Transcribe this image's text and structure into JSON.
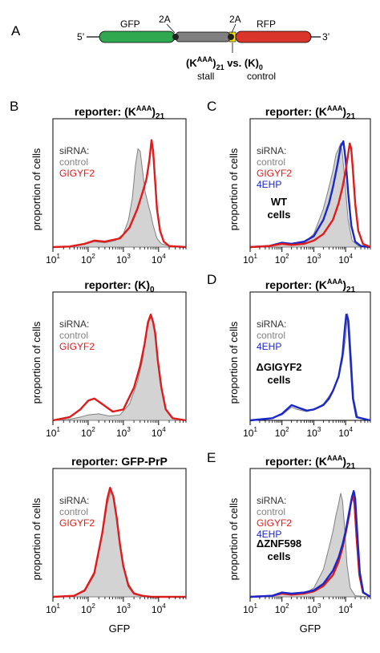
{
  "panels": {
    "a": "A",
    "b": "B",
    "c": "C",
    "d": "D",
    "e": "E"
  },
  "construct": {
    "five_prime": "5’",
    "three_prime": "3’",
    "gfp": "GFP",
    "rfp": "RFP",
    "two_a_left": "2A",
    "two_a_right": "2A",
    "insert_main": "(K",
    "insert_sup1": "AAA",
    "insert_sub1": "21",
    "insert_mid": " vs. (K)",
    "insert_sub2": "0",
    "stall": "stall",
    "control": "control",
    "colors": {
      "gfp": "#2fa84f",
      "linker": "#808080",
      "rfp": "#d9352b",
      "insert": "#f2e600",
      "node": "#222222"
    }
  },
  "colors": {
    "control_fill": "#d3d3d3",
    "control_line": "#808080",
    "gigyf2": "#e01b1b",
    "fourehp": "#1a27c9"
  },
  "chart_data": [
    {
      "id": "B1",
      "type": "area",
      "title": {
        "main": "reporter: (K",
        "sup": "AAA",
        "close": ")",
        "sub": "21"
      },
      "ylabel": "proportion of cells",
      "xlabel": "",
      "xscale": "log",
      "xlim": [
        10,
        60000
      ],
      "ylim": [
        0,
        1
      ],
      "xticks": [
        10,
        100,
        1000,
        10000
      ],
      "xtick_labels": [
        {
          "base": "10",
          "exp": "1"
        },
        {
          "base": "10",
          "exp": "2"
        },
        {
          "base": "10",
          "exp": "3"
        },
        {
          "base": "10",
          "exp": "4"
        }
      ],
      "legend": {
        "header": "siRNA:",
        "entries": [
          "control",
          "GIGYF2"
        ]
      },
      "note": "",
      "series": [
        {
          "name": "control",
          "style": "fill",
          "x": [
            10,
            30,
            80,
            150,
            300,
            600,
            1000,
            1400,
            1800,
            2200,
            2600,
            3000,
            3500,
            4200,
            5000,
            6000,
            7000,
            9000,
            12000,
            20000,
            60000
          ],
          "y": [
            0,
            0.005,
            0.025,
            0.05,
            0.04,
            0.06,
            0.12,
            0.25,
            0.45,
            0.75,
            0.9,
            0.88,
            0.7,
            0.5,
            0.4,
            0.3,
            0.2,
            0.08,
            0.03,
            0.01,
            0
          ]
        },
        {
          "name": "GIGYF2",
          "style": "line",
          "x": [
            10,
            30,
            80,
            150,
            300,
            800,
            1500,
            2500,
            3500,
            4500,
            5500,
            6300,
            7000,
            8000,
            9000,
            11000,
            14000,
            20000,
            60000
          ],
          "y": [
            0,
            0.005,
            0.03,
            0.06,
            0.05,
            0.08,
            0.18,
            0.35,
            0.5,
            0.62,
            0.8,
            0.98,
            0.88,
            0.6,
            0.35,
            0.15,
            0.05,
            0.01,
            0
          ]
        }
      ]
    },
    {
      "id": "C",
      "type": "area",
      "title": {
        "main": "reporter: (K",
        "sup": "AAA",
        "close": ")",
        "sub": "21"
      },
      "ylabel": "proportion of cells",
      "xlabel": "",
      "xscale": "log",
      "xlim": [
        10,
        60000
      ],
      "ylim": [
        0,
        1
      ],
      "xticks": [
        10,
        100,
        1000,
        10000
      ],
      "xtick_labels": [
        {
          "base": "10",
          "exp": "1"
        },
        {
          "base": "10",
          "exp": "2"
        },
        {
          "base": "10",
          "exp": "3"
        },
        {
          "base": "10",
          "exp": "4"
        }
      ],
      "legend": {
        "header": "siRNA:",
        "entries": [
          "control",
          "GIGYF2",
          "4EHP"
        ]
      },
      "note": "WT cells",
      "series": [
        {
          "name": "control",
          "style": "fill",
          "x": [
            10,
            40,
            100,
            200,
            500,
            1000,
            2000,
            3000,
            4000,
            5000,
            6000,
            7000,
            8000,
            9500,
            12000,
            16000,
            25000,
            60000
          ],
          "y": [
            0,
            0.01,
            0.03,
            0.02,
            0.04,
            0.12,
            0.35,
            0.55,
            0.7,
            0.85,
            0.9,
            0.95,
            0.85,
            0.6,
            0.25,
            0.06,
            0.01,
            0
          ]
        },
        {
          "name": "4EHP",
          "style": "line",
          "x": [
            10,
            40,
            100,
            200,
            500,
            1000,
            2000,
            3000,
            4000,
            5500,
            7000,
            8500,
            10000,
            12000,
            15000,
            20000,
            30000,
            60000
          ],
          "y": [
            0,
            0.01,
            0.04,
            0.03,
            0.05,
            0.1,
            0.25,
            0.4,
            0.55,
            0.75,
            0.92,
            0.97,
            0.8,
            0.5,
            0.2,
            0.05,
            0.01,
            0
          ]
        },
        {
          "name": "GIGYF2",
          "style": "line",
          "x": [
            10,
            40,
            100,
            200,
            500,
            1000,
            2000,
            4000,
            6000,
            8000,
            10000,
            12000,
            13500,
            15000,
            17000,
            20000,
            25000,
            35000,
            60000
          ],
          "y": [
            0,
            0.01,
            0.03,
            0.02,
            0.03,
            0.06,
            0.12,
            0.25,
            0.4,
            0.55,
            0.7,
            0.85,
            0.95,
            0.9,
            0.7,
            0.4,
            0.15,
            0.03,
            0
          ]
        }
      ]
    },
    {
      "id": "B2",
      "type": "area",
      "title": {
        "main": "reporter: (K)",
        "sup": "",
        "close": "",
        "sub": "0"
      },
      "ylabel": "proportion of cells",
      "xlabel": "",
      "xscale": "log",
      "xlim": [
        10,
        60000
      ],
      "ylim": [
        0,
        1
      ],
      "xticks": [
        10,
        100,
        1000,
        10000
      ],
      "xtick_labels": [
        {
          "base": "10",
          "exp": "1"
        },
        {
          "base": "10",
          "exp": "2"
        },
        {
          "base": "10",
          "exp": "3"
        },
        {
          "base": "10",
          "exp": "4"
        }
      ],
      "legend": {
        "header": "siRNA:",
        "entries": [
          "control",
          "GIGYF2"
        ]
      },
      "note": "",
      "series": [
        {
          "name": "control",
          "style": "fill",
          "x": [
            10,
            30,
            60,
            100,
            200,
            400,
            800,
            1500,
            2500,
            3500,
            4500,
            5500,
            6500,
            7500,
            9000,
            11000,
            15000,
            25000,
            60000
          ],
          "y": [
            0,
            0.01,
            0.03,
            0.05,
            0.06,
            0.04,
            0.05,
            0.15,
            0.35,
            0.55,
            0.8,
            0.92,
            0.95,
            0.85,
            0.6,
            0.35,
            0.12,
            0.02,
            0
          ]
        },
        {
          "name": "GIGYF2",
          "style": "line",
          "x": [
            10,
            30,
            60,
            100,
            150,
            250,
            500,
            1000,
            2000,
            3000,
            4000,
            5000,
            6000,
            7000,
            8000,
            9500,
            12000,
            16000,
            25000,
            60000
          ],
          "y": [
            0,
            0.03,
            0.1,
            0.18,
            0.2,
            0.15,
            0.08,
            0.1,
            0.3,
            0.5,
            0.7,
            0.9,
            0.97,
            0.9,
            0.8,
            0.55,
            0.3,
            0.1,
            0.02,
            0
          ]
        }
      ]
    },
    {
      "id": "D",
      "type": "area",
      "title": {
        "main": "reporter: (K",
        "sup": "AAA",
        "close": ")",
        "sub": "21"
      },
      "ylabel": "proportion of cells",
      "xlabel": "",
      "xscale": "log",
      "xlim": [
        10,
        60000
      ],
      "ylim": [
        0,
        1
      ],
      "xticks": [
        10,
        100,
        1000,
        10000
      ],
      "xtick_labels": [
        {
          "base": "10",
          "exp": "1"
        },
        {
          "base": "10",
          "exp": "2"
        },
        {
          "base": "10",
          "exp": "3"
        },
        {
          "base": "10",
          "exp": "4"
        }
      ],
      "legend": {
        "header": "siRNA:",
        "entries": [
          "control",
          "4EHP"
        ]
      },
      "note": "ΔGIGYF2 cells",
      "series": [
        {
          "name": "control",
          "style": "none",
          "x": [
            10,
            50,
            100,
            200,
            300,
            600,
            1000,
            2000,
            3000,
            4000,
            6000,
            8000,
            10000,
            11500,
            13000,
            15000,
            18000,
            24000,
            60000
          ],
          "y": [
            0,
            0.02,
            0.05,
            0.12,
            0.1,
            0.08,
            0.1,
            0.15,
            0.22,
            0.28,
            0.4,
            0.55,
            0.75,
            0.98,
            0.9,
            0.6,
            0.2,
            0.03,
            0
          ]
        },
        {
          "name": "4EHP",
          "style": "line",
          "x": [
            10,
            50,
            100,
            200,
            300,
            600,
            1000,
            2000,
            3000,
            4000,
            6000,
            8000,
            9500,
            10500,
            12000,
            14000,
            17000,
            22000,
            60000
          ],
          "y": [
            0,
            0.02,
            0.06,
            0.14,
            0.12,
            0.09,
            0.1,
            0.14,
            0.2,
            0.27,
            0.4,
            0.6,
            0.85,
            0.97,
            0.92,
            0.6,
            0.2,
            0.03,
            0
          ]
        }
      ]
    },
    {
      "id": "B3",
      "type": "area",
      "title": {
        "main": "reporter: GFP-PrP",
        "sup": "",
        "close": "",
        "sub": ""
      },
      "ylabel": "proportion of cells",
      "xlabel": "GFP",
      "xscale": "log",
      "xlim": [
        10,
        60000
      ],
      "ylim": [
        0,
        1
      ],
      "xticks": [
        10,
        100,
        1000,
        10000
      ],
      "xtick_labels": [
        {
          "base": "10",
          "exp": "1"
        },
        {
          "base": "10",
          "exp": "2"
        },
        {
          "base": "10",
          "exp": "3"
        },
        {
          "base": "10",
          "exp": "4"
        }
      ],
      "legend": {
        "header": "siRNA:",
        "entries": [
          "control",
          "GIGYF2"
        ]
      },
      "note": "",
      "series": [
        {
          "name": "control",
          "style": "fill",
          "x": [
            10,
            40,
            80,
            150,
            250,
            350,
            450,
            550,
            650,
            800,
            1000,
            1400,
            2000,
            3500,
            6000,
            60000
          ],
          "y": [
            0,
            0.01,
            0.05,
            0.2,
            0.55,
            0.85,
            0.98,
            0.9,
            0.75,
            0.5,
            0.3,
            0.12,
            0.04,
            0.01,
            0,
            0
          ]
        },
        {
          "name": "GIGYF2",
          "style": "line",
          "x": [
            10,
            40,
            80,
            150,
            250,
            350,
            420,
            520,
            650,
            800,
            1000,
            1400,
            2000,
            3500,
            6000,
            60000
          ],
          "y": [
            0,
            0.01,
            0.06,
            0.22,
            0.58,
            0.9,
            1.0,
            0.92,
            0.72,
            0.48,
            0.28,
            0.1,
            0.03,
            0.01,
            0,
            0
          ]
        }
      ]
    },
    {
      "id": "E",
      "type": "area",
      "title": {
        "main": "reporter: (K",
        "sup": "AAA",
        "close": ")",
        "sub": "21"
      },
      "ylabel": "proportion of cells",
      "xlabel": "GFP",
      "xscale": "log",
      "xlim": [
        10,
        60000
      ],
      "ylim": [
        0,
        1
      ],
      "xticks": [
        10,
        100,
        1000,
        10000
      ],
      "xtick_labels": [
        {
          "base": "10",
          "exp": "1"
        },
        {
          "base": "10",
          "exp": "2"
        },
        {
          "base": "10",
          "exp": "3"
        },
        {
          "base": "10",
          "exp": "4"
        }
      ],
      "legend": {
        "header": "siRNA:",
        "entries": [
          "control",
          "GIGYF2",
          "4EHP"
        ]
      },
      "note": "ΔZNF598 cells",
      "series": [
        {
          "name": "control",
          "style": "fill",
          "x": [
            10,
            50,
            100,
            200,
            500,
            1000,
            2000,
            3000,
            4000,
            5000,
            6000,
            7000,
            8000,
            9500,
            11000,
            14000,
            20000,
            60000
          ],
          "y": [
            0,
            0.01,
            0.03,
            0.02,
            0.03,
            0.08,
            0.25,
            0.45,
            0.6,
            0.75,
            0.85,
            0.95,
            0.88,
            0.6,
            0.3,
            0.08,
            0.01,
            0
          ]
        },
        {
          "name": "GIGYF2",
          "style": "line",
          "x": [
            10,
            50,
            100,
            200,
            500,
            1000,
            2000,
            4000,
            6000,
            8000,
            10000,
            13000,
            15000,
            17000,
            19000,
            22000,
            27000,
            35000,
            60000
          ],
          "y": [
            0,
            0.01,
            0.03,
            0.02,
            0.03,
            0.05,
            0.1,
            0.2,
            0.32,
            0.45,
            0.58,
            0.75,
            0.88,
            0.92,
            0.85,
            0.55,
            0.2,
            0.04,
            0
          ]
        },
        {
          "name": "4EHP",
          "style": "line",
          "x": [
            10,
            50,
            100,
            200,
            500,
            1000,
            2000,
            4000,
            6000,
            8000,
            10000,
            13000,
            16000,
            18000,
            20000,
            23000,
            28000,
            36000,
            60000
          ],
          "y": [
            0,
            0.01,
            0.04,
            0.03,
            0.04,
            0.06,
            0.12,
            0.24,
            0.36,
            0.48,
            0.6,
            0.78,
            0.92,
            0.97,
            0.9,
            0.6,
            0.22,
            0.04,
            0
          ]
        }
      ]
    }
  ]
}
